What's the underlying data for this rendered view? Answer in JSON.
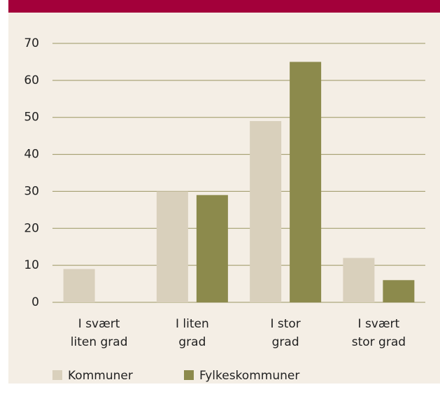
{
  "chart_data": {
    "type": "bar",
    "categories": [
      "I svært liten grad",
      "I liten grad",
      "I stor grad",
      "I svært stor grad"
    ],
    "series": [
      {
        "name": "Kommuner",
        "color": "#d9d0bc",
        "values": [
          9,
          30,
          49,
          12
        ]
      },
      {
        "name": "Fylkeskommuner",
        "color": "#8c8a4c",
        "values": [
          0,
          29,
          65,
          6
        ]
      }
    ],
    "ylim": [
      0,
      70
    ],
    "yticks": [
      0,
      10,
      20,
      30,
      40,
      50,
      60,
      70
    ],
    "grid": true
  }
}
